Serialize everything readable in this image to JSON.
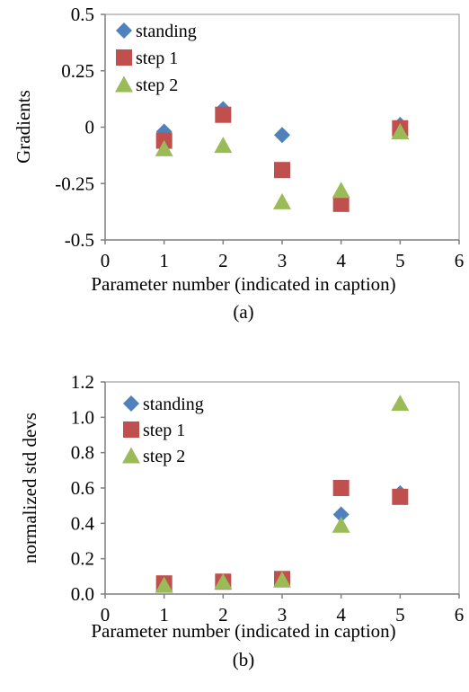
{
  "colors": {
    "standing": "#4F81BD",
    "step 1": "#C0504D",
    "step 2": "#9BBB59"
  },
  "chart_data": [
    {
      "type": "scatter",
      "caption": "(a)",
      "xlabel": "Parameter number (indicated in caption)",
      "ylabel": "Gradients",
      "xlim": [
        0,
        6
      ],
      "ylim": [
        -0.5,
        0.5
      ],
      "xticks": [
        "0",
        "1",
        "2",
        "3",
        "4",
        "5",
        "6"
      ],
      "yticks": [
        "0.5",
        "0.25",
        "0",
        "-0.25",
        "-0.5"
      ],
      "legend_position": "top-left",
      "grid": false,
      "series": [
        {
          "name": "standing",
          "marker": "diamond",
          "x": [
            1,
            2,
            3,
            4,
            5
          ],
          "y": [
            -0.02,
            0.08,
            -0.035,
            -0.335,
            0.01
          ]
        },
        {
          "name": "step 1",
          "marker": "square",
          "x": [
            1,
            2,
            3,
            4,
            5
          ],
          "y": [
            -0.06,
            0.055,
            -0.19,
            -0.34,
            -0.005
          ]
        },
        {
          "name": "step 2",
          "marker": "triangle",
          "x": [
            1,
            2,
            3,
            4,
            5
          ],
          "y": [
            -0.095,
            -0.08,
            -0.33,
            -0.28,
            -0.02
          ]
        }
      ]
    },
    {
      "type": "scatter",
      "caption": "(b)",
      "xlabel": "Parameter number (indicated in caption)",
      "ylabel": "normalized std devs",
      "xlim": [
        0,
        6
      ],
      "ylim": [
        0,
        1.2
      ],
      "xticks": [
        "0",
        "1",
        "2",
        "3",
        "4",
        "5",
        "6"
      ],
      "yticks": [
        "1.2",
        "1.0",
        "0.8",
        "0.6",
        "0.4",
        "0.2",
        "0.0"
      ],
      "legend_position": "top-left",
      "grid": false,
      "series": [
        {
          "name": "standing",
          "marker": "diamond",
          "x": [
            1,
            2,
            3,
            4,
            5
          ],
          "y": [
            0.06,
            0.07,
            0.08,
            0.45,
            0.57
          ]
        },
        {
          "name": "step 1",
          "marker": "square",
          "x": [
            1,
            2,
            3,
            4,
            5
          ],
          "y": [
            0.06,
            0.07,
            0.085,
            0.6,
            0.55
          ]
        },
        {
          "name": "step 2",
          "marker": "triangle",
          "x": [
            1,
            2,
            3,
            4,
            5
          ],
          "y": [
            0.05,
            0.07,
            0.08,
            0.39,
            1.08
          ]
        }
      ]
    }
  ]
}
